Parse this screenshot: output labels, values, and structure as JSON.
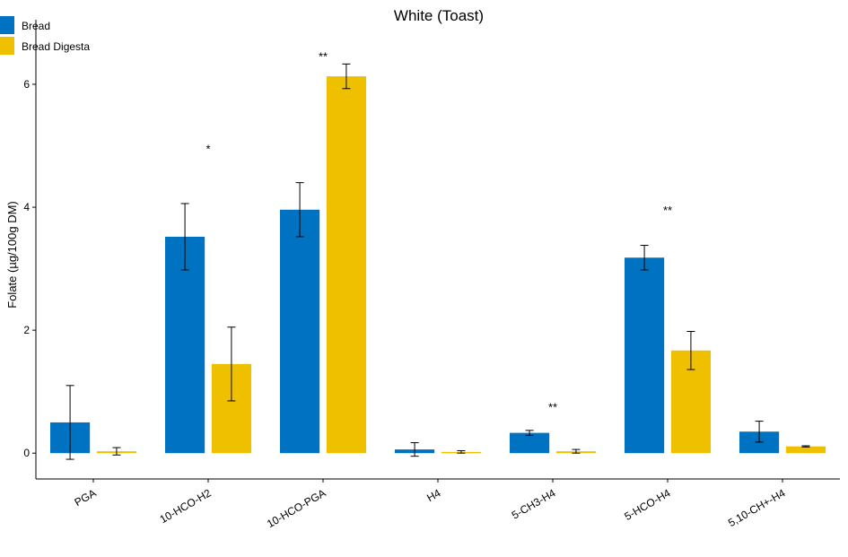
{
  "chart_data": {
    "type": "bar",
    "title": "White (Toast)",
    "ylabel": "Folate (µg/100g DM)",
    "xlabel": "",
    "ylim": [
      -0.42,
      7.05
    ],
    "yticks": [
      "0",
      "2",
      "4",
      "6"
    ],
    "categories": [
      "PGA",
      "10-HCO-H2",
      "10-HCO-PGA",
      "H4",
      "5-CH3-H4",
      "5-HCO-H4",
      "5,10-CH+-H4"
    ],
    "series": [
      {
        "name": "Bread",
        "color": "#0072C2",
        "values": [
          0.5,
          3.52,
          3.96,
          0.06,
          0.33,
          3.18,
          0.35
        ],
        "errors": [
          0.6,
          0.54,
          0.44,
          0.11,
          0.04,
          0.2,
          0.17
        ]
      },
      {
        "name": "Bread Digesta",
        "color": "#EEC000",
        "values": [
          0.03,
          1.45,
          6.13,
          0.02,
          0.03,
          1.67,
          0.11
        ],
        "errors": [
          0.06,
          0.6,
          0.2,
          0.02,
          0.03,
          0.31,
          0.01
        ]
      }
    ],
    "significance": [
      "",
      "*",
      "**",
      "",
      "**",
      "**",
      ""
    ],
    "significance_y": [
      null,
      5.0,
      6.5,
      null,
      0.8,
      4.0,
      null
    ],
    "legend_position": "top-left",
    "grid": false
  }
}
